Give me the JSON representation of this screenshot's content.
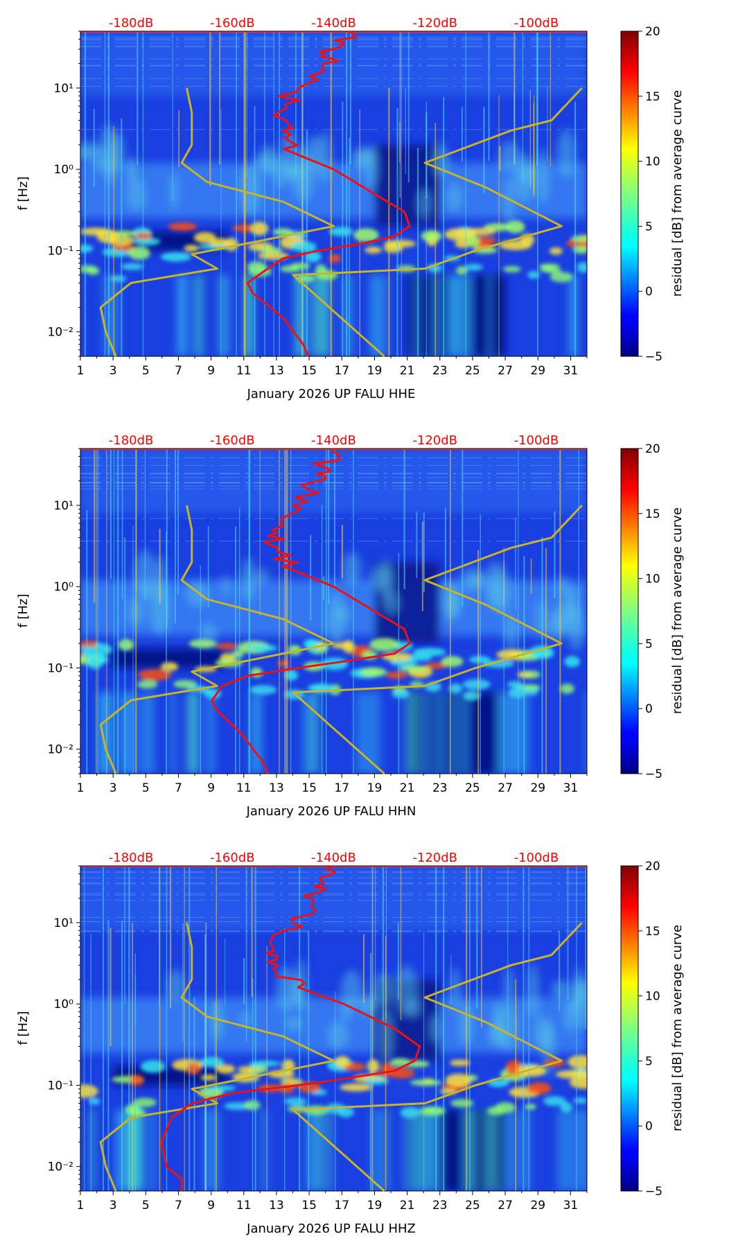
{
  "colors": {
    "nlnm_nhnm": "#c8b42a",
    "median_curve": "#ee1111",
    "db_axis_text": "#ff0000"
  },
  "colorbar": {
    "label": "residual [dB] from average curve",
    "ticks": [
      "20",
      "15",
      "10",
      "5",
      "0",
      "−5"
    ],
    "range": [
      -5,
      20
    ],
    "colormap": "jet"
  },
  "chart_data": [
    {
      "type": "heatmap",
      "title": "",
      "xlabel": "January 2026 UP FALU  HHE",
      "ylabel": "f [Hz]",
      "channel": "HHE",
      "x_range": [
        1,
        32
      ],
      "y_range_hz": [
        0.005,
        50
      ],
      "y_scale": "log",
      "x_ticks": [
        "1",
        "3",
        "5",
        "7",
        "9",
        "11",
        "13",
        "15",
        "17",
        "19",
        "21",
        "23",
        "25",
        "27",
        "29",
        "31"
      ],
      "y_ticks": [
        "10¹",
        "10⁰",
        "10⁻¹",
        "10⁻²"
      ],
      "top_axis_ticks": [
        "-180dB",
        "-160dB",
        "-140dB",
        "-120dB",
        "-100dB"
      ],
      "top_axis_range_db": [
        -190,
        -90
      ],
      "median_curve": [
        {
          "f": 50,
          "db": -137
        },
        {
          "f": 30,
          "db": -140
        },
        {
          "f": 20,
          "db": -142
        },
        {
          "f": 10,
          "db": -147
        },
        {
          "f": 5,
          "db": -151
        },
        {
          "f": 3,
          "db": -150
        },
        {
          "f": 1.6,
          "db": -148
        },
        {
          "f": 1.0,
          "db": -140
        },
        {
          "f": 0.5,
          "db": -132
        },
        {
          "f": 0.3,
          "db": -126
        },
        {
          "f": 0.2,
          "db": -125
        },
        {
          "f": 0.15,
          "db": -128
        },
        {
          "f": 0.12,
          "db": -135
        },
        {
          "f": 0.1,
          "db": -143
        },
        {
          "f": 0.08,
          "db": -150
        },
        {
          "f": 0.06,
          "db": -153
        },
        {
          "f": 0.04,
          "db": -157
        },
        {
          "f": 0.03,
          "db": -156
        },
        {
          "f": 0.015,
          "db": -150
        },
        {
          "f": 0.007,
          "db": -146
        },
        {
          "f": 0.005,
          "db": -145
        }
      ]
    },
    {
      "type": "heatmap",
      "title": "",
      "xlabel": "January 2026 UP FALU  HHN",
      "ylabel": "f [Hz]",
      "channel": "HHN",
      "x_range": [
        1,
        32
      ],
      "y_range_hz": [
        0.005,
        50
      ],
      "y_scale": "log",
      "x_ticks": [
        "1",
        "3",
        "5",
        "7",
        "9",
        "11",
        "13",
        "15",
        "17",
        "19",
        "21",
        "23",
        "25",
        "27",
        "29",
        "31"
      ],
      "y_ticks": [
        "10¹",
        "10⁰",
        "10⁻¹",
        "10⁻²"
      ],
      "top_axis_ticks": [
        "-180dB",
        "-160dB",
        "-140dB",
        "-120dB",
        "-100dB"
      ],
      "top_axis_range_db": [
        -190,
        -90
      ],
      "median_curve": [
        {
          "f": 50,
          "db": -140
        },
        {
          "f": 30,
          "db": -142
        },
        {
          "f": 20,
          "db": -143
        },
        {
          "f": 10,
          "db": -148
        },
        {
          "f": 5,
          "db": -152
        },
        {
          "f": 3,
          "db": -151
        },
        {
          "f": 1.6,
          "db": -148
        },
        {
          "f": 1.0,
          "db": -140
        },
        {
          "f": 0.5,
          "db": -132
        },
        {
          "f": 0.3,
          "db": -126
        },
        {
          "f": 0.2,
          "db": -125
        },
        {
          "f": 0.15,
          "db": -128
        },
        {
          "f": 0.12,
          "db": -138
        },
        {
          "f": 0.1,
          "db": -147
        },
        {
          "f": 0.08,
          "db": -157
        },
        {
          "f": 0.06,
          "db": -162
        },
        {
          "f": 0.04,
          "db": -164
        },
        {
          "f": 0.03,
          "db": -163
        },
        {
          "f": 0.015,
          "db": -158
        },
        {
          "f": 0.007,
          "db": -154
        },
        {
          "f": 0.005,
          "db": -153
        }
      ]
    },
    {
      "type": "heatmap",
      "title": "",
      "xlabel": "January 2026 UP FALU  HHZ",
      "ylabel": "f [Hz]",
      "channel": "HHZ",
      "x_range": [
        1,
        32
      ],
      "y_range_hz": [
        0.005,
        50
      ],
      "y_scale": "log",
      "x_ticks": [
        "1",
        "3",
        "5",
        "7",
        "9",
        "11",
        "13",
        "15",
        "17",
        "19",
        "21",
        "23",
        "25",
        "27",
        "29",
        "31"
      ],
      "y_ticks": [
        "10¹",
        "10⁰",
        "10⁻¹",
        "10⁻²"
      ],
      "top_axis_ticks": [
        "-180dB",
        "-160dB",
        "-140dB",
        "-120dB",
        "-100dB"
      ],
      "top_axis_range_db": [
        -190,
        -90
      ],
      "median_curve": [
        {
          "f": 50,
          "db": -140
        },
        {
          "f": 30,
          "db": -142
        },
        {
          "f": 20,
          "db": -144
        },
        {
          "f": 10,
          "db": -148
        },
        {
          "f": 5,
          "db": -152
        },
        {
          "f": 3,
          "db": -151
        },
        {
          "f": 1.6,
          "db": -147
        },
        {
          "f": 1.0,
          "db": -138
        },
        {
          "f": 0.5,
          "db": -128
        },
        {
          "f": 0.3,
          "db": -123
        },
        {
          "f": 0.2,
          "db": -124
        },
        {
          "f": 0.15,
          "db": -128
        },
        {
          "f": 0.12,
          "db": -138
        },
        {
          "f": 0.1,
          "db": -147
        },
        {
          "f": 0.08,
          "db": -160
        },
        {
          "f": 0.06,
          "db": -168
        },
        {
          "f": 0.04,
          "db": -172
        },
        {
          "f": 0.02,
          "db": -174
        },
        {
          "f": 0.01,
          "db": -173
        },
        {
          "f": 0.007,
          "db": -170
        },
        {
          "f": 0.005,
          "db": -170
        }
      ]
    }
  ],
  "noise_models": {
    "nlnm": [
      {
        "f": 10,
        "db": -169
      },
      {
        "f": 5,
        "db": -168
      },
      {
        "f": 2,
        "db": -168
      },
      {
        "f": 1.2,
        "db": -170
      },
      {
        "f": 0.7,
        "db": -165
      },
      {
        "f": 0.4,
        "db": -150
      },
      {
        "f": 0.2,
        "db": -140
      },
      {
        "f": 0.13,
        "db": -155
      },
      {
        "f": 0.09,
        "db": -168
      },
      {
        "f": 0.06,
        "db": -163
      },
      {
        "f": 0.04,
        "db": -180
      },
      {
        "f": 0.02,
        "db": -186
      },
      {
        "f": 0.01,
        "db": -185
      },
      {
        "f": 0.005,
        "db": -183
      }
    ],
    "nhnm": [
      {
        "f": 10,
        "db": -91
      },
      {
        "f": 4,
        "db": -97
      },
      {
        "f": 3,
        "db": -105
      },
      {
        "f": 1.2,
        "db": -122
      },
      {
        "f": 0.6,
        "db": -110
      },
      {
        "f": 0.2,
        "db": -95
      },
      {
        "f": 0.1,
        "db": -112
      },
      {
        "f": 0.06,
        "db": -122
      },
      {
        "f": 0.05,
        "db": -148
      },
      {
        "f": 0.005,
        "db": -130
      }
    ]
  }
}
